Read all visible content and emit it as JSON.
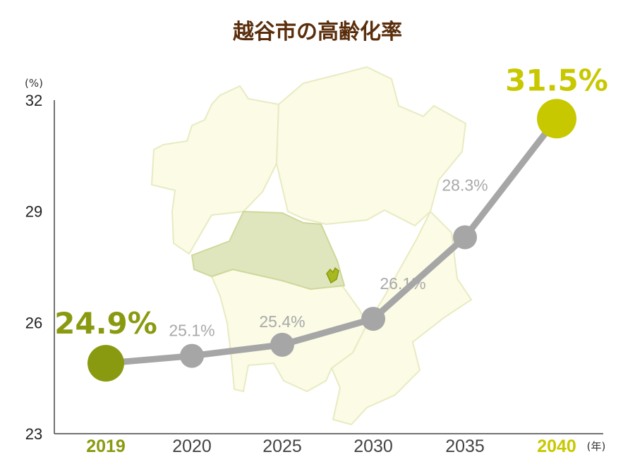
{
  "chart_data": {
    "type": "line",
    "title": "越谷市の高齢化率",
    "y_unit": "(%)",
    "x_unit": "(年)",
    "categories": [
      "2019",
      "2020",
      "2025",
      "2030",
      "2035",
      "2040"
    ],
    "values": [
      24.9,
      25.1,
      25.4,
      26.1,
      28.3,
      31.5
    ],
    "value_labels": [
      "24.9%",
      "25.1%",
      "25.4%",
      "26.1%",
      "28.3%",
      "31.5%"
    ],
    "y_ticks": [
      "23",
      "26",
      "29",
      "32"
    ],
    "ylim": [
      23,
      32
    ],
    "grid": false,
    "legend": "none"
  },
  "colors": {
    "title": "#5a2e0c",
    "line": "#a6a6a6",
    "point": "#a6a6a6",
    "first_point": "#8a9a10",
    "last_point": "#c8c800",
    "map_fill": "#fbfbe6",
    "map_stroke": "#e8ebc2",
    "highlight_region": "#dfe6bd",
    "city_marker": "#a8b820"
  }
}
